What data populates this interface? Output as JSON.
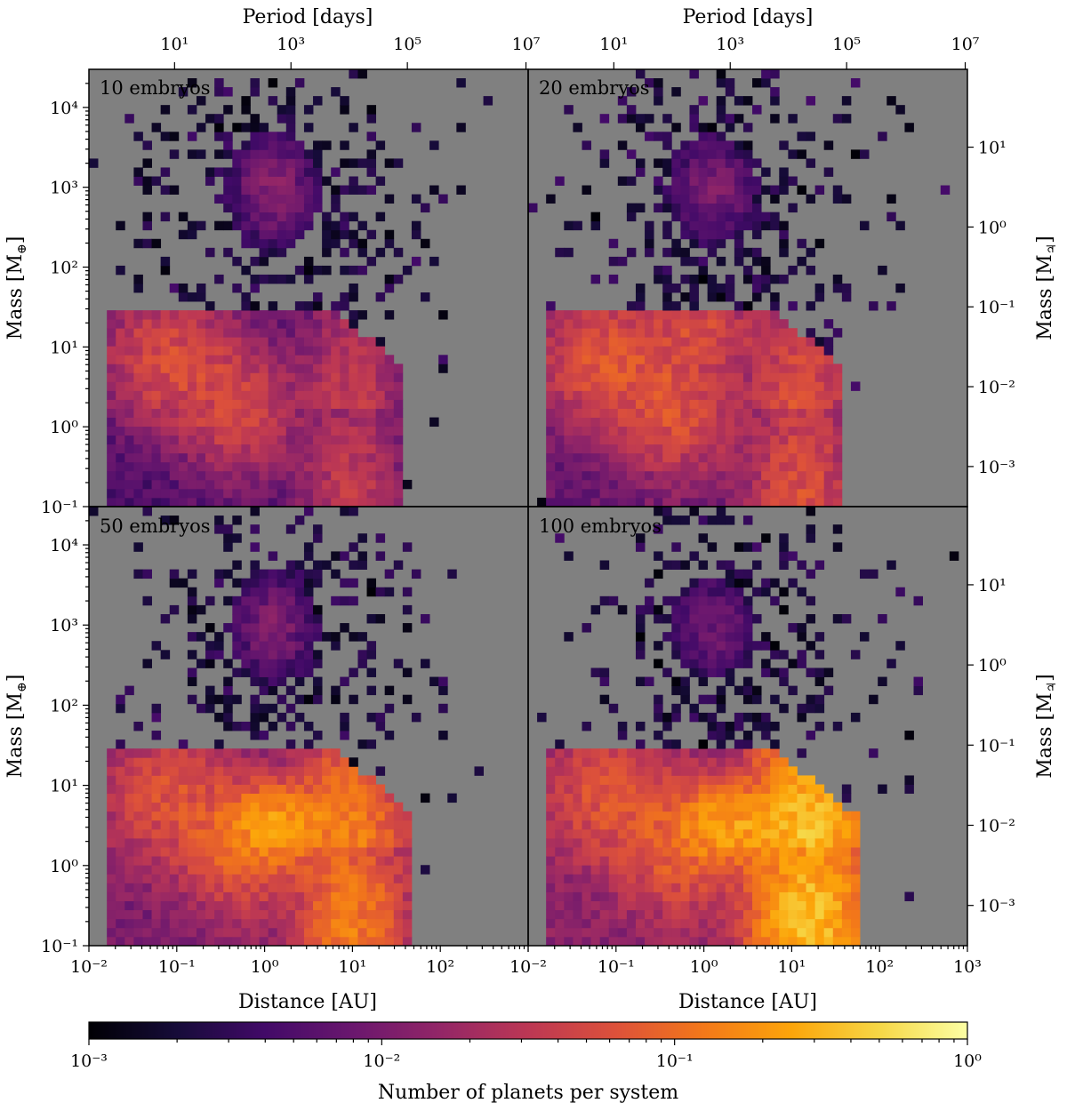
{
  "chart_data": {
    "type": "heatmap",
    "title": "",
    "panels": [
      {
        "name": "10 embryos",
        "embryos": 10
      },
      {
        "name": "20 embryos",
        "embryos": 20
      },
      {
        "name": "50 embryos",
        "embryos": 50
      },
      {
        "name": "100 embryos",
        "embryos": 100
      }
    ],
    "axes": {
      "x": {
        "label": "Distance [AU]",
        "scale": "log",
        "range": [
          0.01,
          1000
        ],
        "tick_labels": [
          "10⁻²",
          "10⁻¹",
          "10⁰",
          "10¹",
          "10²",
          "10³"
        ]
      },
      "x_top": {
        "label": "Period [days]",
        "scale": "log",
        "tick_labels": [
          "10¹",
          "10³",
          "10⁵",
          "10⁷"
        ]
      },
      "y": {
        "label_main": "Mass [M",
        "label_sub": "⊕",
        "label_end": "]",
        "scale": "log",
        "range": [
          0.1,
          30000
        ],
        "tick_labels": [
          "10⁻¹",
          "10⁰",
          "10¹",
          "10²",
          "10³",
          "10⁴"
        ]
      },
      "y_right": {
        "label_main": "Mass [M",
        "label_sub": "♃",
        "label_end": "]",
        "scale": "log",
        "tick_labels": [
          "10⁻³",
          "10⁻²",
          "10⁻¹",
          "10⁰",
          "10¹"
        ]
      }
    },
    "colorbar": {
      "label": "Number of planets per system",
      "scale": "log",
      "range": [
        0.001,
        1
      ],
      "tick_labels": [
        "10⁻³",
        "10⁻²",
        "10⁻¹",
        "10⁰"
      ],
      "colormap": "inferno"
    },
    "colors": {
      "background": "#808080",
      "frame": "#000000"
    },
    "grid": false
  }
}
